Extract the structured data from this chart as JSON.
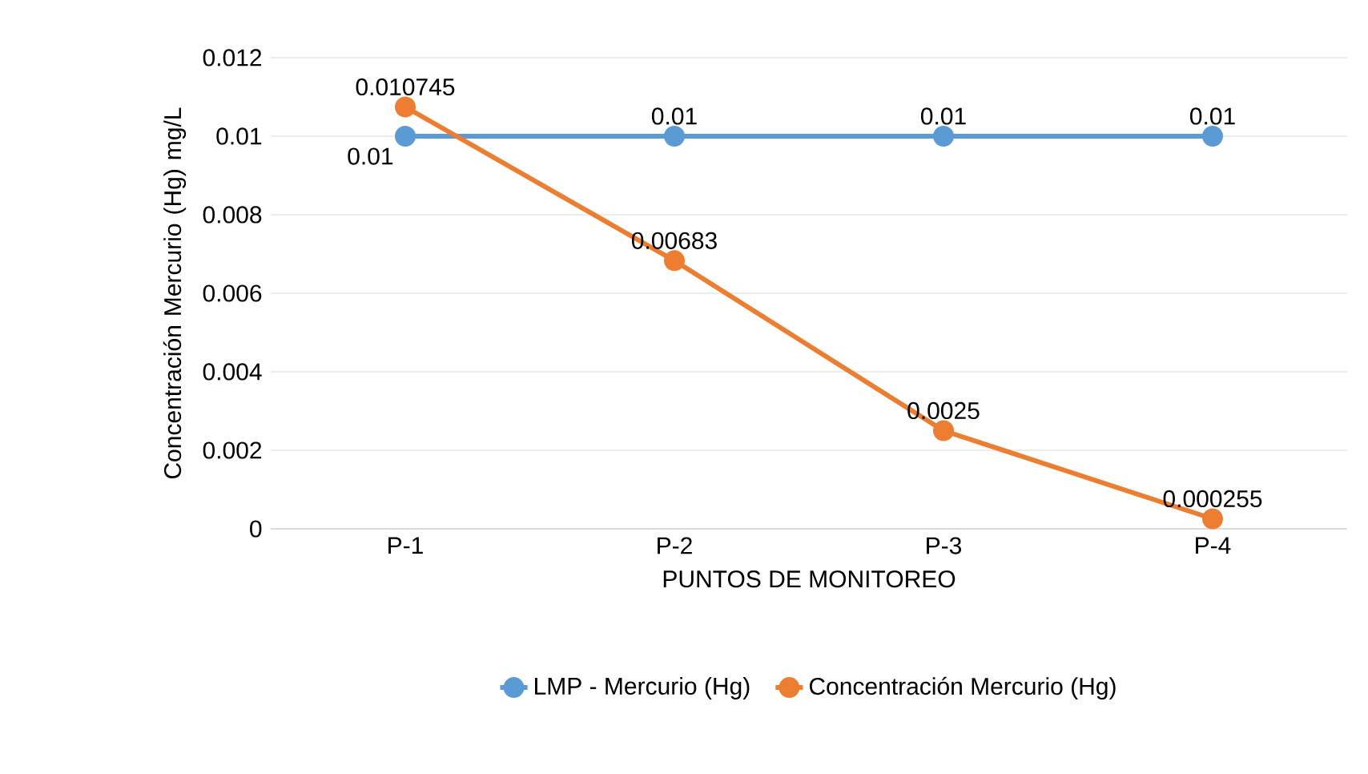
{
  "chart_data": {
    "type": "line",
    "xlabel": "PUNTOS DE MONITOREO",
    "ylabel": "Concentración Mercurio (Hg) mg/L",
    "categories": [
      "P-1",
      "P-2",
      "P-3",
      "P-4"
    ],
    "series": [
      {
        "name": "LMP - Mercurio (Hg)",
        "color": "#5b9bd5",
        "values": [
          0.01,
          0.01,
          0.01,
          0.01
        ]
      },
      {
        "name": "Concentración Mercurio (Hg)",
        "color": "#ed7d31",
        "values": [
          0.010745,
          0.00683,
          0.0025,
          0.000255
        ]
      }
    ],
    "ylim": [
      0,
      0.012
    ],
    "yticks": [
      0,
      0.002,
      0.004,
      0.006,
      0.008,
      0.01,
      0.012
    ],
    "grid": "y",
    "legend": "bottom",
    "marker": "circle",
    "line_style": "solid",
    "data_labels": true
  }
}
